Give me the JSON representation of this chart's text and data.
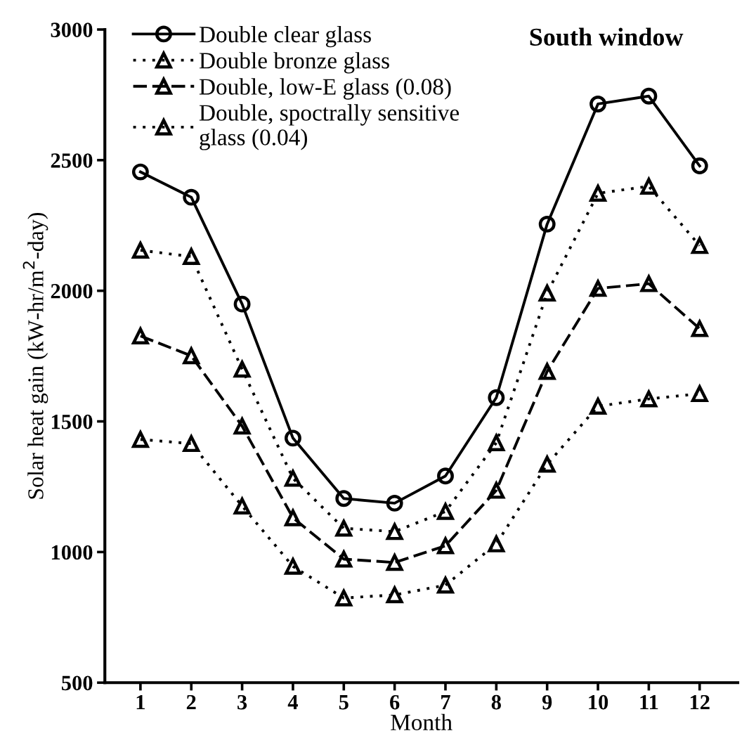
{
  "chart_data": {
    "type": "line",
    "xlabel": "Month",
    "ylabel": "Solar heat gain (kW-hr/m$^{2}$-day)",
    "annotations": [
      "South window"
    ],
    "x": [
      1,
      2,
      3,
      4,
      5,
      6,
      7,
      8,
      9,
      10,
      11,
      12
    ],
    "xlim": [
      0.3,
      12.75
    ],
    "xticks": [
      1,
      2,
      3,
      4,
      5,
      6,
      7,
      8,
      9,
      10,
      11,
      12
    ],
    "ylim": [
      500,
      3000
    ],
    "yticks": [
      500,
      1000,
      1500,
      2000,
      2500,
      3000
    ],
    "grid": false,
    "legend": "top left",
    "series": [
      {
        "name": "Double clear glass",
        "color": "#000000",
        "marker": "circle",
        "line_style": "solid",
        "values": [
          2455,
          2358,
          1949,
          1436,
          1205,
          1187,
          1291,
          1591,
          2255,
          2715,
          2745,
          2478
        ]
      },
      {
        "name": "Double bronze glass",
        "color": "#000000",
        "marker": "triangle",
        "line_style": "dotted",
        "values": [
          2155,
          2131,
          1700,
          1282,
          1091,
          1078,
          1155,
          1418,
          1991,
          2373,
          2400,
          2173
        ]
      },
      {
        "name": "Double, low-E glass (0.08)",
        "color": "#000000",
        "marker": "triangle",
        "line_style": "dashed",
        "values": [
          1827,
          1751,
          1482,
          1131,
          973,
          960,
          1024,
          1236,
          1691,
          2009,
          2027,
          1855
        ]
      },
      {
        "name": "Double, spoctrally sensitive\nglass (0.04)",
        "color": "#000000",
        "marker": "triangle",
        "line_style": "dotted",
        "values": [
          1431,
          1415,
          1176,
          945,
          824,
          836,
          873,
          1031,
          1336,
          1558,
          1586,
          1606
        ]
      }
    ]
  }
}
